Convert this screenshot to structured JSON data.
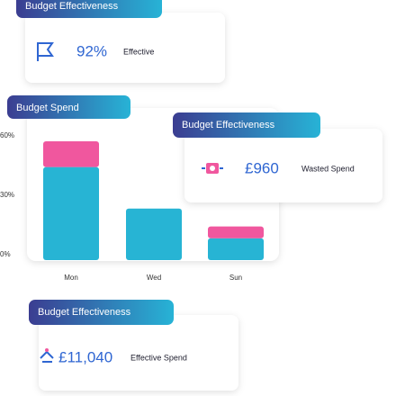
{
  "cards": [
    {
      "badge": "Budget Effectiveness",
      "value": "92%",
      "label": "Effective"
    },
    {
      "badge": "Budget Effectiveness",
      "value": "£960",
      "label": "Wasted Spend"
    },
    {
      "badge": "Budget Effectiveness",
      "value": "£11,040",
      "label": "Effective Spend"
    }
  ],
  "chart_badge": "Budget Spend",
  "chart_data": {
    "type": "bar",
    "stacked": true,
    "categories": [
      "Mon",
      "Wed",
      "Sun"
    ],
    "series": [
      {
        "color": "#27b4d4",
        "values": [
          47,
          26,
          11
        ]
      },
      {
        "color": "#f0579e",
        "values": [
          13,
          0,
          6
        ]
      }
    ],
    "ylim": [
      0,
      60
    ],
    "yticks": [
      {
        "value": 0,
        "label": "0%"
      },
      {
        "value": 30,
        "label": "30%"
      },
      {
        "value": 60,
        "label": "60%"
      }
    ]
  }
}
